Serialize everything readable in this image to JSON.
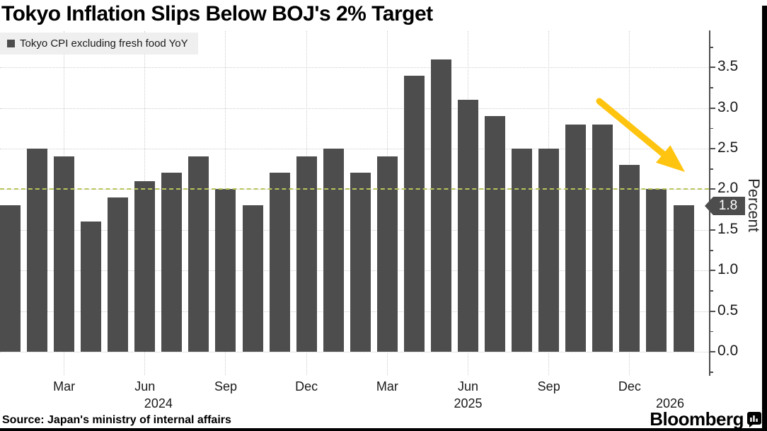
{
  "header": {
    "title": "Tokyo Inflation Slips Below BOJ's 2% Target"
  },
  "legend": {
    "label": "Tokyo CPI excluding fresh food YoY"
  },
  "chart_data": {
    "type": "bar",
    "title": "Tokyo Inflation Slips Below BOJ's 2% Target",
    "series_name": "Tokyo CPI excluding fresh food YoY",
    "categories": [
      "Jan 2024",
      "Feb 2024",
      "Mar 2024",
      "Apr 2024",
      "May 2024",
      "Jun 2024",
      "Jul 2024",
      "Aug 2024",
      "Sep 2024",
      "Oct 2024",
      "Nov 2024",
      "Dec 2024",
      "Jan 2025",
      "Feb 2025",
      "Mar 2025",
      "Apr 2025",
      "May 2025",
      "Jun 2025",
      "Jul 2025",
      "Aug 2025",
      "Sep 2025",
      "Oct 2025",
      "Nov 2025",
      "Dec 2025",
      "Jan 2026",
      "Feb 2026"
    ],
    "values": [
      1.8,
      2.5,
      2.4,
      1.6,
      1.9,
      2.1,
      2.2,
      2.4,
      2.0,
      1.8,
      2.2,
      2.4,
      2.5,
      2.2,
      2.4,
      3.4,
      3.6,
      3.1,
      2.9,
      2.5,
      2.5,
      2.8,
      2.8,
      2.3,
      2.0,
      1.8
    ],
    "xlabel": "",
    "ylabel": "Percent",
    "ylim": [
      0,
      3.75
    ],
    "grid": true,
    "legend_position": "top-left",
    "axis_side": "right",
    "y_ticks": [
      0.0,
      0.5,
      1.0,
      1.5,
      2.0,
      2.5,
      3.0,
      3.5
    ],
    "x_ticks": [
      {
        "label": "Mar",
        "index": 2
      },
      {
        "label": "Jun",
        "index": 5
      },
      {
        "label": "Sep",
        "index": 8
      },
      {
        "label": "Dec",
        "index": 11
      },
      {
        "label": "Mar",
        "index": 14
      },
      {
        "label": "Jun",
        "index": 17
      },
      {
        "label": "Sep",
        "index": 20
      },
      {
        "label": "Dec",
        "index": 23
      }
    ],
    "year_labels": [
      {
        "label": "2024",
        "index": 5.5
      },
      {
        "label": "2025",
        "index": 17
      },
      {
        "label": "2026",
        "index": 24.5
      }
    ],
    "target_line": {
      "value": 2.0
    },
    "latest_badge": {
      "value": "1.8"
    },
    "annotations": {
      "trend_arrow": "down-right"
    }
  },
  "axis": {
    "percent_label": "Percent"
  },
  "footer": {
    "source": "Source: Japan's ministry of internal affairs",
    "brand": "Bloomberg"
  },
  "colors": {
    "bar": "#4d4d4d",
    "target_line": "#b9c45c",
    "arrow": "#ffc40f",
    "grid": "#cdcdcd",
    "axis": "#4d4d4d",
    "legend_bg": "#efefef",
    "badge_bg": "#4d4d4d",
    "badge_text": "#ffffff"
  }
}
